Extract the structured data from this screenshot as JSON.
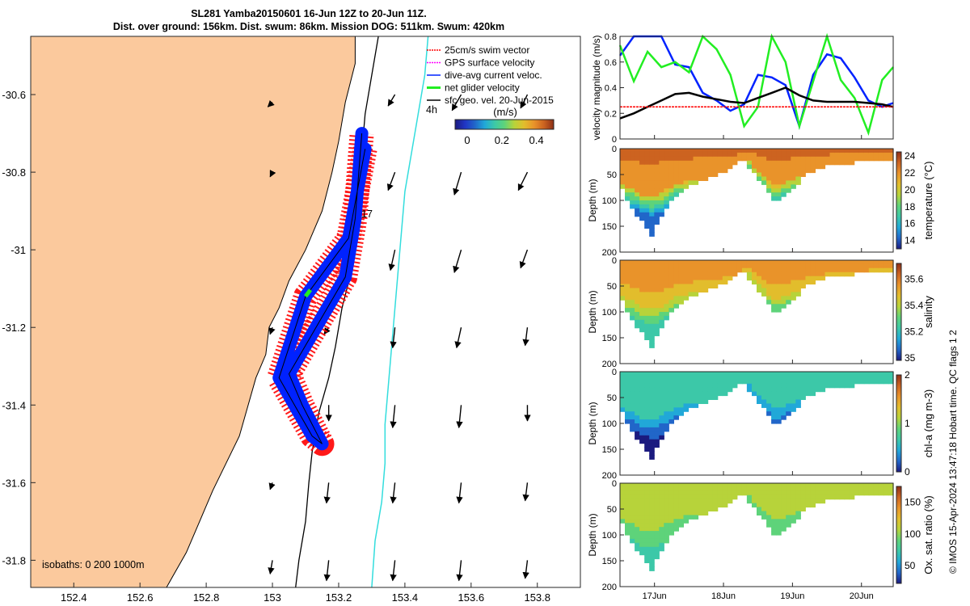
{
  "title": {
    "line1": "SL281 Yamba20150601 16-Jun 12Z to 20-Jun 11Z.",
    "line2": "Dist. over ground: 156km. Dist. swum: 86km. Mission DOG: 511km. Swum: 420km"
  },
  "credit": "© IMOS 15-Apr-2024 13:47:18 Hobart time. QC flags 1  2",
  "colors": {
    "land": "#fbc99d",
    "swim": "#ff0000",
    "gps": "#ff00ff",
    "dive_avg": "#0022ff",
    "net": "#22ee22",
    "geo": "#000000",
    "isobath_200": "#000000",
    "isobath_1000": "#33dddd"
  },
  "chart_data": [
    {
      "type": "map",
      "x_ticks": [
        "152.4",
        "152.6",
        "152.8",
        "153",
        "153.2",
        "153.4",
        "153.6",
        "153.8"
      ],
      "y_ticks": [
        "-30.6",
        "-30.8",
        "-31",
        "-31.2",
        "-31.4",
        "-31.6",
        "-31.8"
      ],
      "xlim": [
        152.27,
        153.93
      ],
      "ylim": [
        -31.87,
        -30.45
      ],
      "legend": {
        "placement": "top-right",
        "entries": [
          "25cm/s swim vector",
          "GPS surface velocity",
          "dive-avg current veloc.",
          "net glider velocity",
          "sfc geo. vel. 20-Jun-2015"
        ]
      },
      "annotations": [
        "4h",
        "17"
      ],
      "isobaths_label": "isobaths: 0   200  1000m",
      "colorbar": {
        "label": "(m/s)",
        "ticks": [
          "0",
          "0.2",
          "0.4"
        ],
        "range": [
          -0.07,
          0.5
        ]
      },
      "glider_track": [
        [
          153.28,
          -30.74
        ],
        [
          153.23,
          -30.97
        ],
        [
          153.1,
          -31.12
        ],
        [
          153.02,
          -31.33
        ],
        [
          153.12,
          -31.48
        ],
        [
          153.15,
          -31.5
        ],
        [
          153.09,
          -31.4
        ],
        [
          153.05,
          -31.32
        ],
        [
          153.22,
          -31.07
        ],
        [
          153.25,
          -30.92
        ],
        [
          153.27,
          -30.7
        ]
      ],
      "geostrophic_vectors": [
        {
          "lon": 153.0,
          "lat": -30.62,
          "u": -0.02,
          "v": -0.02
        },
        {
          "lon": 153.37,
          "lat": -30.6,
          "u": -0.03,
          "v": -0.05
        },
        {
          "lon": 153.57,
          "lat": -30.6,
          "u": -0.04,
          "v": -0.07
        },
        {
          "lon": 153.77,
          "lat": -30.6,
          "u": -0.03,
          "v": -0.06
        },
        {
          "lon": 153.0,
          "lat": -30.8,
          "u": -0.01,
          "v": -0.02
        },
        {
          "lon": 153.37,
          "lat": -30.8,
          "u": -0.03,
          "v": -0.08
        },
        {
          "lon": 153.57,
          "lat": -30.8,
          "u": -0.03,
          "v": -0.1
        },
        {
          "lon": 153.77,
          "lat": -30.8,
          "u": -0.04,
          "v": -0.08
        },
        {
          "lon": 153.37,
          "lat": -31.0,
          "u": -0.02,
          "v": -0.09
        },
        {
          "lon": 153.57,
          "lat": -31.0,
          "u": -0.03,
          "v": -0.1
        },
        {
          "lon": 153.77,
          "lat": -31.0,
          "u": -0.03,
          "v": -0.08
        },
        {
          "lon": 153.0,
          "lat": -31.2,
          "u": -0.01,
          "v": -0.03
        },
        {
          "lon": 153.17,
          "lat": -31.2,
          "u": -0.02,
          "v": -0.03
        },
        {
          "lon": 153.37,
          "lat": -31.2,
          "u": -0.01,
          "v": -0.09
        },
        {
          "lon": 153.57,
          "lat": -31.2,
          "u": -0.02,
          "v": -0.09
        },
        {
          "lon": 153.77,
          "lat": -31.2,
          "u": -0.01,
          "v": -0.08
        },
        {
          "lon": 153.17,
          "lat": -31.4,
          "u": 0.0,
          "v": -0.07
        },
        {
          "lon": 153.37,
          "lat": -31.4,
          "u": -0.01,
          "v": -0.1
        },
        {
          "lon": 153.57,
          "lat": -31.4,
          "u": -0.01,
          "v": -0.1
        },
        {
          "lon": 153.77,
          "lat": -31.4,
          "u": 0.0,
          "v": -0.07
        },
        {
          "lon": 153.0,
          "lat": -31.6,
          "u": -0.01,
          "v": -0.03
        },
        {
          "lon": 153.17,
          "lat": -31.6,
          "u": -0.01,
          "v": -0.09
        },
        {
          "lon": 153.37,
          "lat": -31.6,
          "u": -0.01,
          "v": -0.09
        },
        {
          "lon": 153.57,
          "lat": -31.6,
          "u": -0.01,
          "v": -0.09
        },
        {
          "lon": 153.77,
          "lat": -31.6,
          "u": -0.01,
          "v": -0.08
        },
        {
          "lon": 153.0,
          "lat": -31.8,
          "u": -0.01,
          "v": -0.06
        },
        {
          "lon": 153.17,
          "lat": -31.8,
          "u": -0.01,
          "v": -0.09
        },
        {
          "lon": 153.37,
          "lat": -31.8,
          "u": -0.01,
          "v": -0.09
        },
        {
          "lon": 153.57,
          "lat": -31.8,
          "u": -0.01,
          "v": -0.09
        },
        {
          "lon": 153.77,
          "lat": -31.8,
          "u": -0.01,
          "v": -0.08
        }
      ]
    },
    {
      "type": "line",
      "ylabel": "velocity magnitude (m/s)",
      "ylim": [
        0,
        0.8
      ],
      "y_ticks": [
        "0",
        "0.2",
        "0.4",
        "0.6",
        "0.8"
      ],
      "x": [
        16.5,
        16.7,
        16.9,
        17.1,
        17.3,
        17.5,
        17.7,
        17.9,
        18.1,
        18.3,
        18.5,
        18.7,
        18.9,
        19.1,
        19.3,
        19.5,
        19.7,
        19.9,
        20.1,
        20.3,
        20.46
      ],
      "series": [
        {
          "key": "dive_avg",
          "values": [
            0.65,
            0.8,
            0.8,
            0.8,
            0.58,
            0.56,
            0.36,
            0.3,
            0.22,
            0.27,
            0.5,
            0.48,
            0.42,
            0.1,
            0.5,
            0.66,
            0.63,
            0.48,
            0.3,
            0.25,
            0.28
          ]
        },
        {
          "key": "net",
          "values": [
            0.73,
            0.45,
            0.68,
            0.56,
            0.6,
            0.52,
            0.8,
            0.7,
            0.5,
            0.1,
            0.25,
            0.8,
            0.6,
            0.1,
            0.45,
            0.8,
            0.46,
            0.32,
            0.05,
            0.46,
            0.56
          ]
        },
        {
          "key": "geo",
          "values": [
            0.16,
            0.2,
            0.25,
            0.3,
            0.35,
            0.36,
            0.33,
            0.31,
            0.29,
            0.28,
            0.32,
            0.36,
            0.4,
            0.34,
            0.3,
            0.29,
            0.29,
            0.29,
            0.28,
            0.27,
            0.25
          ]
        },
        {
          "key": "swim",
          "values": [
            0.25,
            0.25,
            0.25,
            0.25,
            0.25,
            0.25,
            0.25,
            0.25,
            0.25,
            0.25,
            0.25,
            0.25,
            0.25,
            0.25,
            0.25,
            0.25,
            0.25,
            0.25,
            0.25,
            0.25,
            0.25
          ]
        }
      ]
    },
    {
      "type": "heatmap",
      "variable": "temperature",
      "clabel": "temperature (°C)",
      "c_ticks": [
        "14",
        "16",
        "18",
        "20",
        "22",
        "24"
      ],
      "clim": [
        13,
        24.5
      ],
      "ylabel": "Depth (m)",
      "y_ticks": [
        "0",
        "50",
        "100",
        "150",
        "200"
      ],
      "surface": 23,
      "deep": 14,
      "palette": [
        "#1b1a7f",
        "#2166c9",
        "#21a8d8",
        "#3cc8a8",
        "#5ed37a",
        "#b7d33a",
        "#e2bd2c",
        "#e9932a",
        "#cc6320",
        "#8c2f17"
      ]
    },
    {
      "type": "heatmap",
      "variable": "salinity",
      "clabel": "salinity",
      "c_ticks": [
        "35",
        "35.2",
        "35.4",
        "35.6"
      ],
      "clim": [
        34.98,
        35.72
      ],
      "ylabel": "Depth (m)",
      "y_ticks": [
        "0",
        "50",
        "100",
        "150",
        "200"
      ],
      "surface": 35.55,
      "deep": 35.2,
      "palette": [
        "#1b1a7f",
        "#2166c9",
        "#21a8d8",
        "#3cc8a8",
        "#5ed37a",
        "#b7d33a",
        "#e2bd2c",
        "#e9932a",
        "#cc6320",
        "#8c2f17"
      ]
    },
    {
      "type": "heatmap",
      "variable": "chl-a",
      "clabel": "chl-a (mg m-3)",
      "c_ticks": [
        "0",
        "1",
        "2"
      ],
      "clim": [
        0,
        2
      ],
      "ylabel": "Depth (m)",
      "y_ticks": [
        "0",
        "50",
        "100",
        "150",
        "200"
      ],
      "surface": 0.75,
      "deep": 0.05,
      "palette": [
        "#1b1a7f",
        "#2166c9",
        "#21a8d8",
        "#3cc8a8",
        "#5ed37a",
        "#b7d33a",
        "#e2bd2c",
        "#e9932a",
        "#cc6320",
        "#8c2f17"
      ]
    },
    {
      "type": "heatmap",
      "variable": "oxygen",
      "clabel": "Ox. sat. ratio (%)",
      "c_ticks": [
        "50",
        "100",
        "150"
      ],
      "clim": [
        22,
        175
      ],
      "ylabel": "Depth (m)",
      "y_ticks": [
        "0",
        "50",
        "100",
        "150",
        "200"
      ],
      "surface": 105,
      "deep": 78,
      "palette": [
        "#1b1a7f",
        "#2166c9",
        "#21a8d8",
        "#3cc8a8",
        "#5ed37a",
        "#b7d33a",
        "#e2bd2c",
        "#e9932a",
        "#cc6320",
        "#8c2f17"
      ]
    }
  ],
  "time_axis": {
    "ticks": [
      "17Jun",
      "18Jun",
      "19Jun",
      "20Jun"
    ],
    "range_days": [
      16.5,
      20.46
    ]
  },
  "bottom_profile": {
    "day": [
      16.5,
      16.7,
      16.85,
      16.95,
      17.1,
      17.25,
      17.4,
      17.55,
      17.7,
      17.85,
      18.0,
      18.15,
      18.3,
      18.45,
      18.6,
      18.75,
      18.9,
      19.05,
      19.25,
      19.45,
      19.65,
      19.85,
      20.05,
      20.25,
      20.46
    ],
    "depth_m": [
      70,
      120,
      145,
      172,
      130,
      95,
      80,
      70,
      60,
      55,
      45,
      35,
      20,
      50,
      75,
      100,
      95,
      70,
      45,
      35,
      30,
      28,
      25,
      25,
      25
    ]
  },
  "thermocline_m": {
    "day": [
      16.5,
      16.8,
      17.0,
      17.3,
      17.6,
      17.9,
      18.2,
      18.35,
      18.5,
      18.75,
      19.0,
      19.3,
      19.6,
      19.9,
      20.2,
      20.46
    ],
    "depth_m": [
      65,
      88,
      95,
      70,
      60,
      55,
      40,
      18,
      45,
      75,
      60,
      45,
      35,
      30,
      28,
      25
    ]
  }
}
